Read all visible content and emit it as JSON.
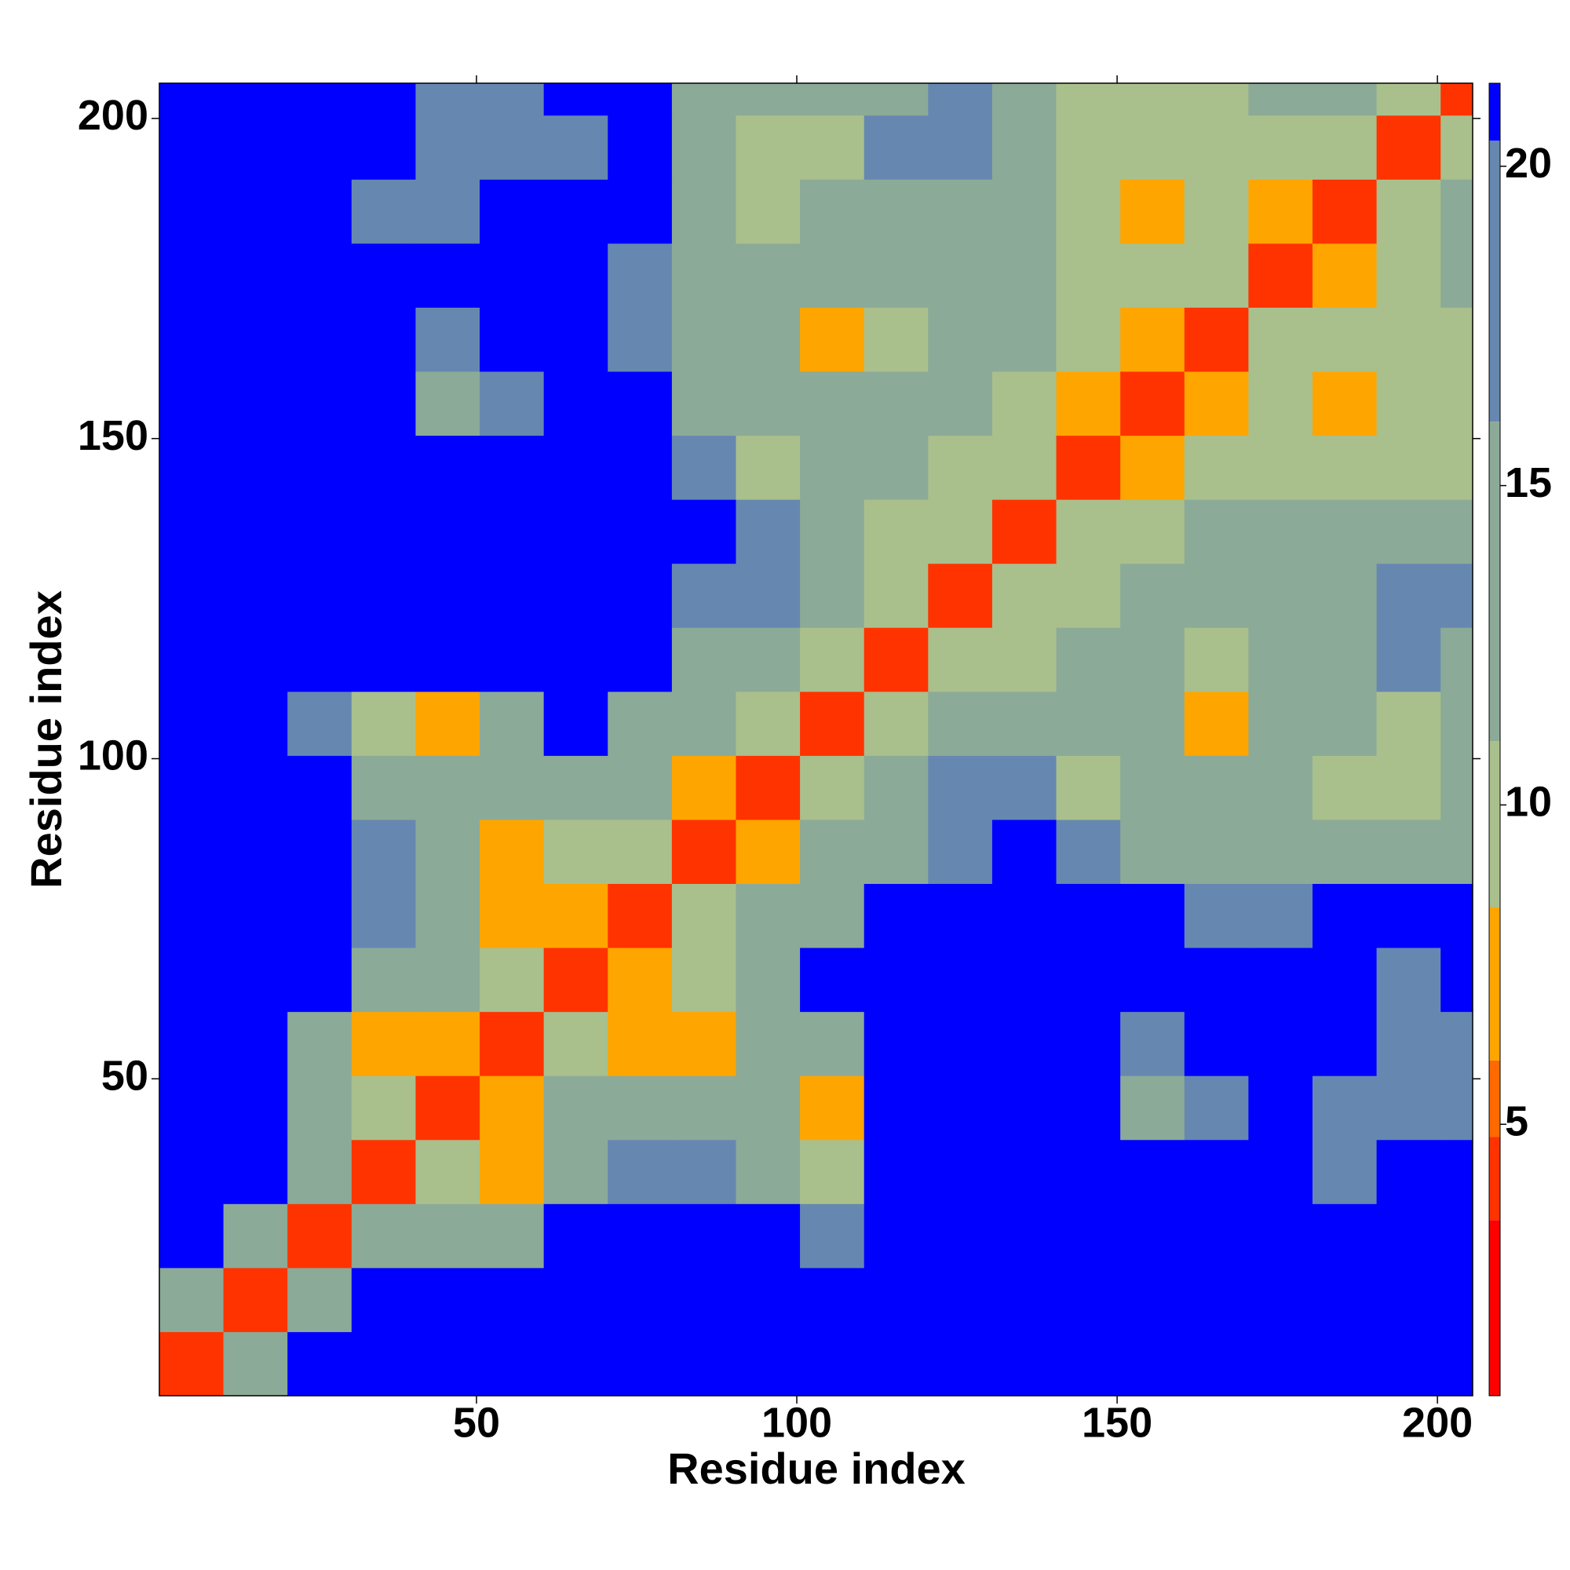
{
  "chart_data": {
    "type": "heatmap",
    "xlabel": "Residue index",
    "ylabel": "Residue index",
    "x_edges": [
      0.5,
      10.5,
      20.5,
      30.5,
      40.5,
      50.5,
      60.5,
      70.5,
      80.5,
      90.5,
      100.5,
      110.5,
      120.5,
      130.5,
      140.5,
      150.5,
      160.5,
      170.5,
      180.5,
      190.5,
      200.5,
      205.5
    ],
    "y_edges": [
      0.5,
      10.5,
      20.5,
      30.5,
      40.5,
      50.5,
      60.5,
      70.5,
      80.5,
      90.5,
      100.5,
      110.5,
      120.5,
      130.5,
      140.5,
      150.5,
      160.5,
      170.5,
      180.5,
      190.5,
      200.5,
      205.5
    ],
    "xlim": [
      0.5,
      205.5
    ],
    "ylim": [
      0.5,
      205.5
    ],
    "xticks": [
      50,
      100,
      150,
      200
    ],
    "yticks": [
      50,
      100,
      150,
      200
    ],
    "clim": [
      0.75,
      21.3
    ],
    "cticks": [
      5,
      10,
      15,
      20
    ],
    "colorscale": [
      {
        "upto": 3.5,
        "color": "#ff0000"
      },
      {
        "upto": 4.8,
        "color": "#ff3300"
      },
      {
        "upto": 6,
        "color": "#ff6a00"
      },
      {
        "upto": 8.4,
        "color": "#ffa500"
      },
      {
        "upto": 11,
        "color": "#a9c08c"
      },
      {
        "upto": 16,
        "color": "#8caa98"
      },
      {
        "upto": 20.4,
        "color": "#6688b0"
      },
      {
        "upto": 21.3,
        "color": "#0000ff"
      }
    ],
    "values": [
      [
        4,
        14,
        22,
        22,
        22,
        22,
        22,
        22,
        22,
        22,
        22,
        22,
        22,
        22,
        22,
        22,
        22,
        22,
        22,
        22,
        22
      ],
      [
        14,
        4,
        14,
        22,
        22,
        22,
        22,
        22,
        22,
        22,
        22,
        22,
        22,
        22,
        22,
        22,
        22,
        22,
        22,
        22,
        22
      ],
      [
        22,
        14,
        4,
        14,
        16,
        16,
        22,
        22,
        22,
        22,
        18,
        22,
        22,
        22,
        22,
        22,
        22,
        22,
        22,
        22,
        22
      ],
      [
        22,
        22,
        14,
        4,
        10,
        8,
        14,
        18,
        18,
        13,
        9,
        22,
        22,
        22,
        22,
        22,
        22,
        22,
        20,
        22,
        22
      ],
      [
        22,
        22,
        16,
        10,
        4,
        8,
        12,
        16,
        16,
        12,
        8,
        22,
        22,
        22,
        22,
        16,
        18,
        22,
        18,
        17,
        18
      ],
      [
        22,
        22,
        16,
        8,
        8,
        4,
        9,
        8,
        8,
        12,
        14,
        22,
        22,
        22,
        22,
        18,
        22,
        22,
        22,
        18,
        18
      ],
      [
        22,
        22,
        22,
        14,
        12,
        9,
        4,
        7,
        11,
        12,
        22,
        22,
        22,
        22,
        22,
        22,
        22,
        22,
        22,
        20,
        22
      ],
      [
        22,
        22,
        22,
        18,
        16,
        8,
        7,
        4,
        10,
        12,
        14,
        22,
        22,
        22,
        22,
        22,
        18,
        20,
        22,
        22,
        22
      ],
      [
        22,
        22,
        22,
        18,
        16,
        8,
        11,
        10,
        4,
        8,
        12,
        16,
        20,
        22,
        18,
        16,
        14,
        14,
        16,
        13,
        14
      ],
      [
        22,
        22,
        22,
        13,
        12,
        12,
        12,
        12,
        8,
        4,
        10,
        13,
        18,
        18,
        10,
        12,
        12,
        12,
        9,
        10,
        12
      ],
      [
        22,
        22,
        18,
        9,
        8,
        14,
        22,
        14,
        12,
        10,
        4,
        10,
        12,
        16,
        13,
        12,
        8,
        14,
        12,
        11,
        14
      ],
      [
        22,
        22,
        22,
        22,
        22,
        22,
        22,
        22,
        16,
        13,
        10,
        4,
        9,
        10,
        14,
        13,
        11,
        13,
        16,
        18,
        16
      ],
      [
        22,
        22,
        22,
        22,
        22,
        22,
        22,
        22,
        20,
        18,
        12,
        9,
        4,
        9,
        10,
        12,
        14,
        15,
        16,
        18,
        20
      ],
      [
        22,
        22,
        22,
        22,
        22,
        22,
        22,
        22,
        22,
        18,
        16,
        10,
        9,
        4,
        9,
        10,
        12,
        12,
        12,
        14,
        16
      ],
      [
        22,
        22,
        22,
        22,
        22,
        22,
        22,
        22,
        18,
        10,
        13,
        14,
        10,
        9,
        4,
        8,
        9,
        10,
        10,
        11,
        11
      ],
      [
        22,
        22,
        22,
        22,
        16,
        18,
        22,
        22,
        16,
        12,
        12,
        13,
        12,
        10,
        8,
        4,
        8,
        10,
        8,
        9,
        9
      ],
      [
        22,
        22,
        22,
        22,
        18,
        22,
        22,
        18,
        14,
        12,
        8,
        11,
        14,
        12,
        9,
        8,
        4,
        9,
        10,
        10,
        10
      ],
      [
        22,
        22,
        22,
        22,
        22,
        22,
        22,
        20,
        14,
        12,
        14,
        13,
        15,
        12,
        10,
        10,
        9,
        4,
        7,
        10,
        12
      ],
      [
        22,
        22,
        22,
        20,
        18,
        22,
        22,
        22,
        16,
        9,
        12,
        16,
        16,
        12,
        10,
        8,
        10,
        7,
        4,
        9,
        12
      ],
      [
        22,
        22,
        22,
        22,
        17,
        18,
        20,
        22,
        13,
        10,
        11,
        18,
        18,
        14,
        11,
        9,
        10,
        10,
        9,
        4,
        10
      ],
      [
        22,
        22,
        22,
        22,
        18,
        18,
        22,
        22,
        14,
        12,
        14,
        16,
        20,
        16,
        11,
        9,
        10,
        12,
        12,
        10,
        4
      ]
    ]
  }
}
